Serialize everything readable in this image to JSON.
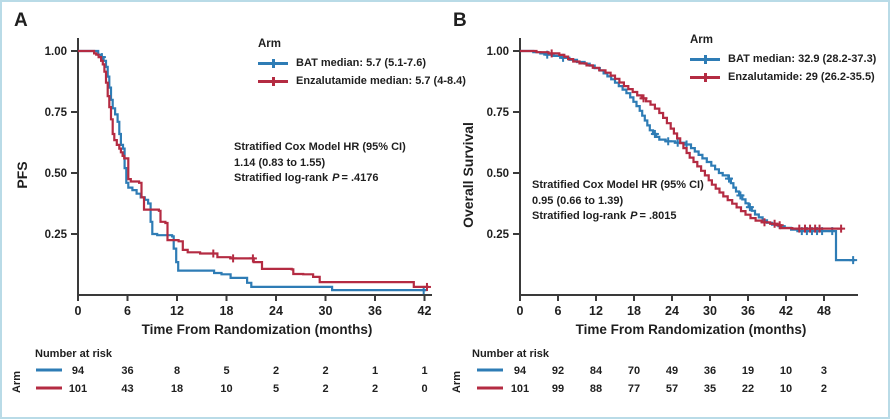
{
  "figure": {
    "border_color": "#b9dbe7",
    "background": "#ffffff"
  },
  "colors": {
    "bat": "#2e7cb5",
    "enza": "#b42b42",
    "axis": "#3a3a3a",
    "text": "#1f1f1f"
  },
  "panels": [
    {
      "label": "A",
      "ylabel": "PFS",
      "xlabel": "Time From Randomization (months)",
      "legend": {
        "title": "Arm",
        "items": [
          {
            "series": "BAT",
            "label": "BAT median: 5.7 (5.1-7.6)",
            "color_key": "bat"
          },
          {
            "series": "Enzalutamide",
            "label": "Enzalutamide median: 5.7 (4-8.4)",
            "color_key": "enza"
          }
        ]
      },
      "stats": {
        "line1": "Stratified Cox Model HR (95% CI)",
        "line2": "1.14 (0.83 to 1.55)",
        "line3_prefix": "Stratified log-rank",
        "p_symbol": "P",
        "line3_value": "= .4176",
        "hr": 1.14,
        "hr_ci": "0.83 to 1.55",
        "p_value": ".4176"
      },
      "risk": {
        "header": "Number at risk",
        "axis_label": "Arm",
        "rows": [
          {
            "series": "BAT",
            "color_key": "bat",
            "counts": [
              94,
              36,
              8,
              5,
              2,
              2,
              1,
              1
            ]
          },
          {
            "series": "Enzalutamide",
            "color_key": "enza",
            "counts": [
              101,
              43,
              18,
              10,
              5,
              2,
              2,
              0
            ]
          }
        ]
      }
    },
    {
      "label": "B",
      "ylabel": "Overall Survival",
      "xlabel": "Time From Randomization (months)",
      "legend": {
        "title": "Arm",
        "items": [
          {
            "series": "BAT",
            "label": "BAT median: 32.9 (28.2-37.3)",
            "color_key": "bat"
          },
          {
            "series": "Enzalutamide",
            "label": "Enzalutamide: 29 (26.2-35.5)",
            "color_key": "enza"
          }
        ]
      },
      "stats": {
        "line1": "Stratified Cox Model HR (95% CI)",
        "line2": "0.95 (0.66 to 1.39)",
        "line3_prefix": "Stratified log-rank",
        "p_symbol": "P",
        "line3_value": "= .8015",
        "hr": 0.95,
        "hr_ci": "0.66 to 1.39",
        "p_value": ".8015"
      },
      "risk": {
        "header": "Number at risk",
        "axis_label": "Arm",
        "rows": [
          {
            "series": "BAT",
            "color_key": "bat",
            "counts": [
              94,
              92,
              84,
              70,
              49,
              36,
              19,
              10,
              3
            ]
          },
          {
            "series": "Enzalutamide",
            "color_key": "enza",
            "counts": [
              101,
              99,
              88,
              77,
              57,
              35,
              22,
              10,
              2
            ]
          }
        ]
      }
    }
  ],
  "chart_data": [
    {
      "type": "line",
      "subtype": "kaplan-meier-step",
      "title": "",
      "xlabel": "Time From Randomization (months)",
      "ylabel": "PFS",
      "x_ticks": [
        0,
        6,
        12,
        18,
        24,
        30,
        36,
        42
      ],
      "y_ticks": [
        1.0,
        0.75,
        0.5,
        0.25
      ],
      "xlim": [
        0,
        43
      ],
      "ylim": [
        0,
        1.02
      ],
      "grid": false,
      "legend_position": "top-right",
      "series": [
        {
          "name": "BAT",
          "color_key": "bat",
          "median": 5.7,
          "median_ci": "5.1-7.6",
          "points": [
            [
              0,
              1
            ],
            [
              2.3,
              1
            ],
            [
              2.45,
              0.985
            ],
            [
              2.8,
              0.975
            ],
            [
              3.1,
              0.96
            ],
            [
              3.4,
              0.935
            ],
            [
              3.6,
              0.895
            ],
            [
              3.8,
              0.85
            ],
            [
              4.0,
              0.8
            ],
            [
              4.2,
              0.765
            ],
            [
              4.5,
              0.74
            ],
            [
              4.8,
              0.71
            ],
            [
              5.0,
              0.66
            ],
            [
              5.2,
              0.615
            ],
            [
              5.45,
              0.6
            ],
            [
              5.65,
              0.52
            ],
            [
              5.85,
              0.46
            ],
            [
              6.1,
              0.44
            ],
            [
              6.6,
              0.43
            ],
            [
              7.1,
              0.415
            ],
            [
              7.6,
              0.4
            ],
            [
              8.1,
              0.39
            ],
            [
              8.5,
              0.375
            ],
            [
              8.8,
              0.3
            ],
            [
              9.0,
              0.25
            ],
            [
              9.6,
              0.245
            ],
            [
              11.4,
              0.24
            ],
            [
              11.6,
              0.19
            ],
            [
              11.9,
              0.135
            ],
            [
              12.15,
              0.1
            ],
            [
              16.0,
              0.1
            ],
            [
              16.5,
              0.09
            ],
            [
              17.4,
              0.085
            ],
            [
              18.5,
              0.07
            ],
            [
              20.5,
              0.05
            ],
            [
              21.0,
              0.033
            ],
            [
              30.3,
              0.033
            ],
            [
              30.8,
              0.02
            ],
            [
              42.2,
              0.02
            ]
          ],
          "censor_times": [
            2.9,
            41.9
          ]
        },
        {
          "name": "Enzalutamide",
          "color_key": "enza",
          "median": 5.7,
          "median_ci": "4-8.4",
          "points": [
            [
              0,
              1
            ],
            [
              1.8,
              1
            ],
            [
              1.95,
              0.99
            ],
            [
              2.2,
              0.985
            ],
            [
              2.5,
              0.975
            ],
            [
              2.8,
              0.96
            ],
            [
              3.0,
              0.945
            ],
            [
              3.2,
              0.915
            ],
            [
              3.4,
              0.87
            ],
            [
              3.6,
              0.815
            ],
            [
              3.8,
              0.77
            ],
            [
              4.0,
              0.72
            ],
            [
              4.2,
              0.66
            ],
            [
              4.4,
              0.635
            ],
            [
              4.7,
              0.615
            ],
            [
              5.0,
              0.6
            ],
            [
              5.2,
              0.585
            ],
            [
              5.4,
              0.57
            ],
            [
              5.6,
              0.56
            ],
            [
              6.1,
              0.475
            ],
            [
              6.4,
              0.465
            ],
            [
              7.4,
              0.46
            ],
            [
              7.7,
              0.4
            ],
            [
              8.0,
              0.35
            ],
            [
              9.8,
              0.345
            ],
            [
              10.0,
              0.3
            ],
            [
              10.6,
              0.295
            ],
            [
              10.85,
              0.225
            ],
            [
              12.2,
              0.22
            ],
            [
              12.7,
              0.185
            ],
            [
              13.3,
              0.175
            ],
            [
              14.8,
              0.17
            ],
            [
              16.9,
              0.155
            ],
            [
              18.5,
              0.15
            ],
            [
              21.3,
              0.135
            ],
            [
              22.3,
              0.107
            ],
            [
              25.9,
              0.105
            ],
            [
              26.1,
              0.086
            ],
            [
              27.3,
              0.085
            ],
            [
              28.5,
              0.074
            ],
            [
              29.3,
              0.053
            ],
            [
              40.4,
              0.053
            ],
            [
              40.7,
              0.033
            ],
            [
              42.5,
              0.033
            ]
          ],
          "censor_times": [
            16.4,
            18.8,
            21.2,
            42.3
          ]
        }
      ]
    },
    {
      "type": "line",
      "subtype": "kaplan-meier-step",
      "title": "",
      "xlabel": "Time From Randomization (months)",
      "ylabel": "Overall Survival",
      "x_ticks": [
        0,
        6,
        12,
        18,
        24,
        30,
        36,
        42,
        48
      ],
      "y_ticks": [
        1.0,
        0.75,
        0.5,
        0.25
      ],
      "xlim": [
        0,
        53.5
      ],
      "ylim": [
        0,
        1.02
      ],
      "grid": false,
      "legend_position": "top-right",
      "series": [
        {
          "name": "BAT",
          "color_key": "bat",
          "median": 32.9,
          "median_ci": "28.2-37.3",
          "points": [
            [
              0,
              1
            ],
            [
              1.9,
              1
            ],
            [
              2.1,
              0.995
            ],
            [
              3.2,
              0.99
            ],
            [
              4.1,
              0.985
            ],
            [
              5.3,
              0.98
            ],
            [
              6.6,
              0.972
            ],
            [
              7.8,
              0.964
            ],
            [
              9.0,
              0.955
            ],
            [
              10.2,
              0.948
            ],
            [
              11.0,
              0.94
            ],
            [
              11.8,
              0.93
            ],
            [
              12.6,
              0.92
            ],
            [
              13.2,
              0.908
            ],
            [
              13.8,
              0.896
            ],
            [
              14.4,
              0.884
            ],
            [
              15.0,
              0.87
            ],
            [
              15.6,
              0.856
            ],
            [
              16.2,
              0.842
            ],
            [
              16.8,
              0.827
            ],
            [
              17.4,
              0.81
            ],
            [
              17.9,
              0.792
            ],
            [
              18.4,
              0.774
            ],
            [
              18.9,
              0.755
            ],
            [
              19.3,
              0.735
            ],
            [
              19.7,
              0.715
            ],
            [
              20.1,
              0.695
            ],
            [
              20.5,
              0.675
            ],
            [
              21.0,
              0.66
            ],
            [
              21.5,
              0.648
            ],
            [
              22.0,
              0.637
            ],
            [
              23.0,
              0.63
            ],
            [
              24.5,
              0.624
            ],
            [
              26.0,
              0.617
            ],
            [
              27.0,
              0.602
            ],
            [
              27.6,
              0.588
            ],
            [
              28.2,
              0.574
            ],
            [
              28.8,
              0.56
            ],
            [
              29.5,
              0.545
            ],
            [
              30.2,
              0.53
            ],
            [
              30.8,
              0.515
            ],
            [
              31.4,
              0.5
            ],
            [
              32.0,
              0.49
            ],
            [
              32.9,
              0.477
            ],
            [
              33.3,
              0.458
            ],
            [
              33.7,
              0.44
            ],
            [
              34.1,
              0.424
            ],
            [
              34.6,
              0.408
            ],
            [
              35.1,
              0.392
            ],
            [
              35.6,
              0.376
            ],
            [
              36.1,
              0.36
            ],
            [
              36.6,
              0.345
            ],
            [
              37.1,
              0.33
            ],
            [
              37.7,
              0.318
            ],
            [
              38.3,
              0.306
            ],
            [
              39.0,
              0.296
            ],
            [
              39.8,
              0.288
            ],
            [
              40.8,
              0.282
            ],
            [
              41.8,
              0.275
            ],
            [
              42.8,
              0.268
            ],
            [
              43.8,
              0.262
            ],
            [
              49.6,
              0.262
            ],
            [
              49.9,
              0.143
            ],
            [
              52.9,
              0.143
            ]
          ],
          "censor_times": [
            4.3,
            6.8,
            21.3,
            23.4,
            24.9,
            26.3,
            33.0,
            34.8,
            36.3,
            44.5,
            45.3,
            46.1,
            46.9,
            47.7,
            49.3,
            52.6
          ]
        },
        {
          "name": "Enzalutamide",
          "color_key": "enza",
          "median": 29,
          "median_ci": "26.2-35.5",
          "points": [
            [
              0,
              1
            ],
            [
              2.4,
              1
            ],
            [
              2.6,
              0.995
            ],
            [
              4.5,
              0.99
            ],
            [
              6.2,
              0.984
            ],
            [
              7.0,
              0.977
            ],
            [
              7.6,
              0.967
            ],
            [
              8.4,
              0.957
            ],
            [
              9.4,
              0.949
            ],
            [
              10.5,
              0.941
            ],
            [
              11.5,
              0.931
            ],
            [
              12.5,
              0.921
            ],
            [
              13.5,
              0.911
            ],
            [
              14.3,
              0.899
            ],
            [
              15.0,
              0.886
            ],
            [
              15.7,
              0.871
            ],
            [
              16.4,
              0.856
            ],
            [
              17.1,
              0.844
            ],
            [
              17.8,
              0.832
            ],
            [
              18.5,
              0.818
            ],
            [
              19.2,
              0.806
            ],
            [
              19.9,
              0.794
            ],
            [
              20.6,
              0.78
            ],
            [
              21.3,
              0.764
            ],
            [
              22.0,
              0.746
            ],
            [
              22.6,
              0.726
            ],
            [
              23.2,
              0.704
            ],
            [
              23.8,
              0.682
            ],
            [
              24.3,
              0.662
            ],
            [
              24.8,
              0.642
            ],
            [
              25.3,
              0.622
            ],
            [
              25.8,
              0.602
            ],
            [
              26.3,
              0.582
            ],
            [
              26.8,
              0.563
            ],
            [
              27.4,
              0.545
            ],
            [
              28.0,
              0.527
            ],
            [
              28.6,
              0.509
            ],
            [
              29.2,
              0.49
            ],
            [
              29.8,
              0.47
            ],
            [
              30.3,
              0.452
            ],
            [
              30.9,
              0.436
            ],
            [
              31.5,
              0.42
            ],
            [
              32.1,
              0.404
            ],
            [
              32.8,
              0.389
            ],
            [
              33.5,
              0.374
            ],
            [
              34.2,
              0.359
            ],
            [
              34.9,
              0.344
            ],
            [
              35.6,
              0.329
            ],
            [
              36.4,
              0.315
            ],
            [
              37.2,
              0.305
            ],
            [
              38.2,
              0.298
            ],
            [
              39.5,
              0.292
            ],
            [
              40.6,
              0.286
            ],
            [
              41.2,
              0.274
            ],
            [
              43.0,
              0.272
            ],
            [
              50.9,
              0.272
            ]
          ],
          "censor_times": [
            5.0,
            19.5,
            38.6,
            40.2,
            41.0,
            44.1,
            45.0,
            45.8,
            46.6,
            47.3,
            50.7
          ]
        }
      ]
    }
  ]
}
